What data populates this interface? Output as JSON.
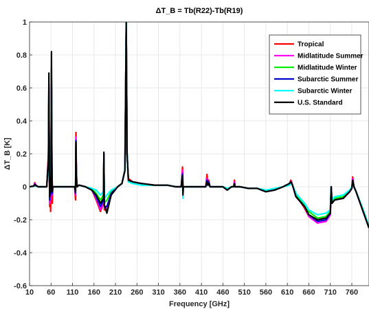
{
  "chart_data": {
    "type": "line",
    "title": "ΔT_B = Tb(R22)-Tb(R19)",
    "xlabel": "Frequency [GHz]",
    "ylabel": "ΔT_B [K]",
    "xlim": [
      10,
      800
    ],
    "ylim": [
      -0.6,
      1.0
    ],
    "xticks": [
      10,
      60,
      110,
      160,
      210,
      260,
      310,
      360,
      410,
      460,
      510,
      560,
      610,
      660,
      710,
      760
    ],
    "yticks": [
      -0.6,
      -0.4,
      -0.2,
      0,
      0.2,
      0.4,
      0.6,
      0.8,
      1
    ],
    "ytick_labels": [
      "-0.6",
      "-0.4",
      "-0.2",
      "0",
      "0.2",
      "0.4",
      "0.6",
      "0.8",
      "1"
    ],
    "grid": true,
    "legend_position": "top-right",
    "series": [
      {
        "name": "Tropical",
        "color": "#ff0000",
        "x": [
          10,
          20,
          22,
          25,
          30,
          40,
          50,
          54,
          55,
          56,
          57,
          58,
          59,
          60,
          61,
          62,
          63,
          64,
          66,
          70,
          80,
          100,
          115,
          117,
          118,
          119,
          120,
          121,
          125,
          140,
          155,
          165,
          175,
          182,
          183,
          184,
          190,
          200,
          215,
          225,
          232,
          235,
          237,
          240,
          250,
          270,
          300,
          330,
          350,
          363,
          366,
          367,
          368,
          380,
          400,
          420,
          423,
          425,
          427,
          430,
          440,
          450,
          460,
          470,
          480,
          485,
          487,
          488,
          490,
          500,
          520,
          540,
          560,
          580,
          600,
          615,
          618,
          620,
          622,
          630,
          640,
          650,
          660,
          680,
          700,
          710,
          712,
          714,
          720,
          740,
          755,
          760,
          762,
          765,
          770,
          785,
          800
        ],
        "y": [
          0,
          0.005,
          0.025,
          0.01,
          0.0,
          0.0,
          0.0,
          0.2,
          0.62,
          0.1,
          -0.12,
          0.18,
          -0.15,
          0.0,
          0.65,
          0.15,
          -0.1,
          0.0,
          0.0,
          0.0,
          0.0,
          0.0,
          0.0,
          -0.08,
          0.33,
          0.1,
          0.02,
          0.0,
          0.01,
          0.0,
          -0.02,
          -0.08,
          -0.15,
          -0.1,
          0.2,
          -0.14,
          -0.14,
          -0.05,
          0.0,
          0.02,
          0.1,
          1.0,
          0.2,
          0.05,
          0.03,
          0.02,
          0.01,
          0.01,
          0.0,
          0.0,
          0.12,
          0.0,
          0.0,
          0.0,
          0.0,
          0.0,
          0.075,
          0.01,
          0.04,
          0.0,
          0.0,
          0.0,
          0.0,
          -0.02,
          0.0,
          0.0,
          0.04,
          0.0,
          0.0,
          0.0,
          -0.01,
          -0.01,
          -0.03,
          -0.02,
          0.0,
          0.02,
          0.04,
          0.03,
          0.01,
          -0.06,
          -0.09,
          -0.13,
          -0.18,
          -0.22,
          -0.21,
          -0.17,
          0.0,
          -0.1,
          -0.08,
          -0.07,
          -0.03,
          -0.01,
          0.06,
          0.0,
          -0.03,
          -0.14,
          -0.25
        ]
      },
      {
        "name": "Midlatitude Summer",
        "color": "#ff00ff",
        "x": [
          10,
          20,
          22,
          25,
          30,
          40,
          50,
          54,
          55,
          56,
          57,
          58,
          59,
          60,
          61,
          62,
          63,
          64,
          66,
          70,
          80,
          100,
          115,
          117,
          118,
          119,
          120,
          121,
          125,
          140,
          155,
          165,
          175,
          182,
          183,
          184,
          190,
          200,
          215,
          225,
          232,
          235,
          237,
          240,
          250,
          270,
          300,
          330,
          350,
          363,
          366,
          367,
          368,
          380,
          400,
          420,
          423,
          425,
          427,
          430,
          440,
          450,
          460,
          470,
          480,
          485,
          487,
          488,
          490,
          500,
          520,
          540,
          560,
          580,
          600,
          615,
          618,
          620,
          622,
          630,
          640,
          650,
          660,
          680,
          700,
          710,
          712,
          714,
          720,
          740,
          755,
          760,
          762,
          765,
          770,
          785,
          800
        ],
        "y": [
          0,
          0.005,
          0.02,
          0.01,
          0.0,
          0.0,
          0.0,
          0.18,
          0.62,
          0.1,
          -0.1,
          0.1,
          -0.08,
          0.0,
          0.7,
          0.15,
          -0.05,
          0.0,
          0.0,
          0.0,
          0.0,
          0.0,
          0.0,
          -0.05,
          0.3,
          0.08,
          0.02,
          0.0,
          0.01,
          0.0,
          -0.02,
          -0.07,
          -0.14,
          -0.09,
          0.2,
          -0.13,
          -0.13,
          -0.05,
          0.0,
          0.02,
          0.1,
          1.0,
          0.2,
          0.04,
          0.03,
          0.02,
          0.01,
          0.01,
          0.0,
          0.0,
          0.1,
          0.0,
          0.0,
          0.0,
          0.0,
          0.0,
          0.05,
          0.01,
          0.03,
          0.0,
          0.0,
          0.0,
          0.0,
          -0.02,
          0.0,
          0.0,
          0.03,
          0.0,
          0.0,
          0.0,
          -0.01,
          -0.01,
          -0.03,
          -0.02,
          0.0,
          0.02,
          0.03,
          0.03,
          0.01,
          -0.06,
          -0.09,
          -0.12,
          -0.18,
          -0.22,
          -0.21,
          -0.17,
          0.0,
          -0.1,
          -0.08,
          -0.07,
          -0.03,
          -0.01,
          0.05,
          0.0,
          -0.03,
          -0.14,
          -0.25
        ]
      },
      {
        "name": "Midlatitude Winter",
        "color": "#00ee00",
        "x": [
          10,
          20,
          22,
          25,
          30,
          40,
          50,
          54,
          55,
          56,
          57,
          58,
          59,
          60,
          61,
          62,
          63,
          64,
          66,
          70,
          80,
          100,
          115,
          117,
          118,
          119,
          120,
          121,
          125,
          140,
          155,
          165,
          175,
          182,
          183,
          184,
          190,
          200,
          215,
          225,
          232,
          235,
          237,
          240,
          250,
          270,
          300,
          330,
          350,
          363,
          366,
          367,
          368,
          380,
          400,
          420,
          423,
          425,
          427,
          430,
          440,
          450,
          460,
          470,
          480,
          485,
          487,
          488,
          490,
          500,
          520,
          540,
          560,
          580,
          600,
          615,
          618,
          620,
          622,
          630,
          640,
          650,
          660,
          680,
          700,
          710,
          712,
          714,
          720,
          740,
          755,
          760,
          762,
          765,
          770,
          785,
          800
        ],
        "y": [
          0,
          0.005,
          0.01,
          0.005,
          0.0,
          0.0,
          0.0,
          0.15,
          0.55,
          0.1,
          -0.05,
          0.05,
          -0.02,
          0.0,
          0.7,
          0.12,
          -0.02,
          0.0,
          0.0,
          0.0,
          0.0,
          0.0,
          0.0,
          -0.02,
          0.25,
          0.06,
          0.02,
          0.0,
          0.01,
          0.0,
          -0.01,
          -0.04,
          -0.08,
          -0.05,
          0.18,
          -0.1,
          -0.08,
          -0.03,
          0.0,
          0.02,
          0.1,
          1.0,
          0.2,
          0.03,
          0.02,
          0.01,
          0.01,
          0.01,
          0.0,
          0.0,
          0.05,
          0.0,
          0.0,
          0.0,
          0.0,
          0.0,
          0.02,
          0.01,
          0.02,
          0.0,
          0.0,
          0.0,
          0.0,
          -0.01,
          0.0,
          0.0,
          0.01,
          0.0,
          0.0,
          0.0,
          -0.01,
          -0.01,
          -0.02,
          -0.02,
          0.0,
          0.01,
          0.02,
          0.02,
          0.01,
          -0.05,
          -0.08,
          -0.11,
          -0.15,
          -0.19,
          -0.18,
          -0.15,
          0.0,
          -0.09,
          -0.07,
          -0.06,
          -0.02,
          0.0,
          0.02,
          0.0,
          -0.03,
          -0.13,
          -0.24
        ]
      },
      {
        "name": "Subarctic Summer",
        "color": "#0000cc",
        "x": [
          10,
          20,
          22,
          25,
          30,
          40,
          50,
          54,
          55,
          56,
          57,
          58,
          59,
          60,
          61,
          62,
          63,
          64,
          66,
          70,
          80,
          100,
          115,
          117,
          118,
          119,
          120,
          121,
          125,
          140,
          155,
          165,
          175,
          182,
          183,
          184,
          190,
          200,
          215,
          225,
          232,
          235,
          237,
          240,
          250,
          270,
          300,
          330,
          350,
          363,
          366,
          367,
          368,
          380,
          400,
          420,
          423,
          425,
          427,
          430,
          440,
          450,
          460,
          470,
          480,
          485,
          487,
          488,
          490,
          500,
          520,
          540,
          560,
          580,
          600,
          615,
          618,
          620,
          622,
          630,
          640,
          650,
          660,
          680,
          700,
          710,
          712,
          714,
          720,
          740,
          755,
          760,
          762,
          765,
          770,
          785,
          800
        ],
        "y": [
          0,
          0.005,
          0.015,
          0.008,
          0.0,
          0.0,
          0.0,
          0.17,
          0.6,
          0.1,
          -0.08,
          0.08,
          -0.05,
          0.0,
          0.72,
          0.15,
          -0.04,
          0.0,
          0.0,
          0.0,
          0.0,
          0.0,
          0.0,
          -0.04,
          0.28,
          0.07,
          0.02,
          0.0,
          0.01,
          0.0,
          -0.02,
          -0.06,
          -0.12,
          -0.08,
          0.2,
          -0.12,
          -0.12,
          -0.04,
          0.0,
          0.02,
          0.1,
          1.0,
          0.2,
          0.04,
          0.03,
          0.02,
          0.01,
          0.01,
          0.0,
          0.0,
          0.08,
          0.0,
          0.0,
          0.0,
          0.0,
          0.0,
          0.04,
          0.01,
          0.03,
          0.0,
          0.0,
          0.0,
          0.0,
          -0.02,
          0.0,
          0.0,
          0.02,
          0.0,
          0.0,
          0.0,
          -0.01,
          -0.01,
          -0.03,
          -0.02,
          0.0,
          0.02,
          0.03,
          0.02,
          0.01,
          -0.06,
          -0.09,
          -0.12,
          -0.17,
          -0.21,
          -0.2,
          -0.16,
          0.0,
          -0.1,
          -0.08,
          -0.07,
          -0.03,
          -0.01,
          0.04,
          0.0,
          -0.03,
          -0.14,
          -0.25
        ]
      },
      {
        "name": "Subarctic Winter",
        "color": "#00ffff",
        "x": [
          10,
          20,
          22,
          25,
          30,
          40,
          50,
          54,
          55,
          56,
          57,
          58,
          59,
          60,
          61,
          62,
          63,
          64,
          66,
          70,
          80,
          100,
          115,
          117,
          118,
          119,
          120,
          121,
          125,
          140,
          155,
          165,
          175,
          182,
          183,
          184,
          190,
          200,
          215,
          225,
          232,
          235,
          237,
          240,
          250,
          270,
          300,
          330,
          350,
          363,
          366,
          367,
          368,
          380,
          400,
          420,
          423,
          425,
          427,
          430,
          440,
          450,
          460,
          470,
          480,
          485,
          487,
          488,
          490,
          500,
          520,
          540,
          560,
          580,
          600,
          615,
          618,
          620,
          622,
          630,
          640,
          650,
          660,
          680,
          700,
          710,
          712,
          714,
          720,
          740,
          755,
          760,
          762,
          765,
          770,
          785,
          800
        ],
        "y": [
          0,
          0.003,
          0.008,
          0.004,
          0.0,
          0.0,
          0.0,
          0.14,
          0.5,
          0.1,
          -0.03,
          0.04,
          -0.01,
          0.0,
          0.68,
          0.1,
          -0.01,
          0.0,
          0.0,
          0.0,
          0.0,
          0.0,
          0.0,
          -0.01,
          0.22,
          0.05,
          0.02,
          0.0,
          0.01,
          0.0,
          -0.01,
          -0.02,
          -0.05,
          -0.03,
          0.15,
          -0.07,
          -0.05,
          -0.02,
          0.0,
          0.02,
          0.1,
          1.0,
          0.2,
          0.03,
          0.02,
          0.01,
          0.01,
          0.01,
          0.0,
          0.0,
          0.03,
          -0.07,
          0.0,
          0.0,
          0.0,
          0.0,
          0.01,
          0.01,
          0.01,
          0.0,
          0.0,
          0.0,
          0.0,
          -0.01,
          0.0,
          0.0,
          0.01,
          0.0,
          0.0,
          0.0,
          -0.01,
          -0.01,
          -0.02,
          -0.01,
          0.0,
          0.01,
          0.02,
          0.02,
          0.01,
          -0.04,
          -0.07,
          -0.1,
          -0.14,
          -0.17,
          -0.16,
          -0.14,
          0.0,
          -0.08,
          -0.06,
          -0.05,
          -0.02,
          0.0,
          0.01,
          0.0,
          -0.03,
          -0.13,
          -0.24
        ]
      },
      {
        "name": "U.S. Standard",
        "color": "#000000",
        "x": [
          10,
          20,
          22,
          25,
          30,
          40,
          50,
          54,
          55,
          56,
          57,
          58,
          59,
          60,
          61,
          62,
          63,
          64,
          66,
          70,
          80,
          100,
          115,
          117,
          118,
          119,
          120,
          121,
          125,
          140,
          155,
          165,
          175,
          182,
          183,
          184,
          190,
          200,
          215,
          225,
          232,
          235,
          237,
          240,
          250,
          270,
          300,
          330,
          350,
          363,
          366,
          367,
          368,
          380,
          400,
          420,
          423,
          425,
          427,
          430,
          440,
          450,
          460,
          470,
          480,
          485,
          487,
          488,
          490,
          500,
          520,
          540,
          560,
          580,
          600,
          615,
          618,
          620,
          622,
          630,
          640,
          650,
          660,
          680,
          700,
          710,
          712,
          714,
          720,
          740,
          755,
          760,
          762,
          765,
          770,
          785,
          800
        ],
        "y": [
          0,
          0.004,
          0.012,
          0.006,
          0.0,
          0.0,
          0.0,
          0.17,
          0.69,
          0.1,
          -0.06,
          0.06,
          -0.03,
          0.0,
          0.82,
          0.15,
          -0.03,
          0.0,
          0.0,
          0.0,
          0.0,
          0.0,
          0.0,
          -0.03,
          0.27,
          0.07,
          0.02,
          0.0,
          0.01,
          0.0,
          -0.02,
          -0.05,
          -0.1,
          -0.07,
          0.21,
          -0.11,
          -0.16,
          -0.05,
          0.0,
          0.02,
          0.1,
          1.0,
          0.2,
          0.04,
          0.03,
          0.02,
          0.01,
          0.01,
          0.0,
          0.0,
          0.07,
          -0.05,
          0.0,
          0.0,
          0.0,
          0.0,
          0.03,
          0.01,
          0.02,
          0.0,
          0.0,
          0.0,
          0.0,
          -0.02,
          0.0,
          0.0,
          0.02,
          0.0,
          0.0,
          0.0,
          -0.01,
          -0.01,
          -0.03,
          -0.02,
          0.0,
          0.02,
          0.03,
          0.02,
          0.01,
          -0.06,
          -0.09,
          -0.12,
          -0.17,
          -0.2,
          -0.19,
          -0.16,
          0.0,
          -0.1,
          -0.08,
          -0.07,
          -0.03,
          -0.01,
          0.04,
          0.0,
          -0.03,
          -0.14,
          -0.25
        ]
      }
    ]
  }
}
